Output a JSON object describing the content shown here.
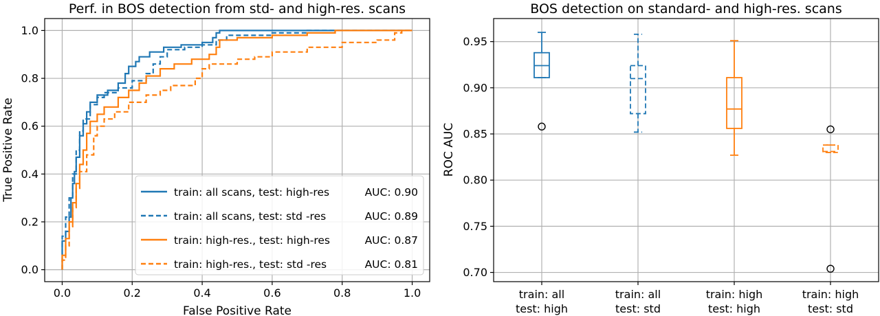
{
  "colors": {
    "blue": "#1f77b4",
    "orange": "#ff7f0e"
  },
  "chart_data": [
    {
      "type": "line",
      "title": "Perf. in BOS detection from std- and high-res. scans",
      "xlabel": "False Positive Rate",
      "ylabel": "True Positive Rate",
      "xlim": [
        -0.05,
        1.05
      ],
      "ylim": [
        -0.05,
        1.05
      ],
      "xticks": [
        0.0,
        0.2,
        0.4,
        0.6,
        0.8,
        1.0
      ],
      "yticks": [
        0.0,
        0.2,
        0.4,
        0.6,
        0.8,
        1.0
      ],
      "grid": true,
      "legend_position": "lower-right",
      "series": [
        {
          "name": "train: all scans, test: high-res",
          "auc_label": "AUC: 0.90",
          "color": "#1f77b4",
          "dash": "solid",
          "points": [
            [
              0,
              0
            ],
            [
              0,
              0.12
            ],
            [
              0.01,
              0.12
            ],
            [
              0.01,
              0.16
            ],
            [
              0.02,
              0.16
            ],
            [
              0.02,
              0.22
            ],
            [
              0.025,
              0.22
            ],
            [
              0.025,
              0.3
            ],
            [
              0.03,
              0.3
            ],
            [
              0.03,
              0.36
            ],
            [
              0.035,
              0.36
            ],
            [
              0.035,
              0.41
            ],
            [
              0.04,
              0.41
            ],
            [
              0.04,
              0.47
            ],
            [
              0.05,
              0.47
            ],
            [
              0.05,
              0.56
            ],
            [
              0.06,
              0.56
            ],
            [
              0.06,
              0.61
            ],
            [
              0.07,
              0.61
            ],
            [
              0.07,
              0.66
            ],
            [
              0.08,
              0.66
            ],
            [
              0.08,
              0.7
            ],
            [
              0.1,
              0.7
            ],
            [
              0.1,
              0.73
            ],
            [
              0.13,
              0.73
            ],
            [
              0.13,
              0.75
            ],
            [
              0.16,
              0.75
            ],
            [
              0.16,
              0.78
            ],
            [
              0.18,
              0.78
            ],
            [
              0.18,
              0.82
            ],
            [
              0.19,
              0.82
            ],
            [
              0.19,
              0.85
            ],
            [
              0.21,
              0.85
            ],
            [
              0.21,
              0.87
            ],
            [
              0.22,
              0.87
            ],
            [
              0.22,
              0.89
            ],
            [
              0.25,
              0.89
            ],
            [
              0.25,
              0.91
            ],
            [
              0.29,
              0.91
            ],
            [
              0.29,
              0.93
            ],
            [
              0.34,
              0.93
            ],
            [
              0.34,
              0.94
            ],
            [
              0.4,
              0.94
            ],
            [
              0.4,
              0.95
            ],
            [
              0.43,
              0.95
            ],
            [
              0.43,
              0.97
            ],
            [
              0.44,
              0.97
            ],
            [
              0.44,
              0.99
            ],
            [
              0.45,
              0.99
            ],
            [
              0.45,
              1.0
            ],
            [
              1.0,
              1.0
            ]
          ]
        },
        {
          "name": "train: all scans, test: std -res",
          "auc_label": "AUC: 0.89",
          "color": "#1f77b4",
          "dash": "dashed",
          "points": [
            [
              0,
              0
            ],
            [
              0,
              0.14
            ],
            [
              0.01,
              0.14
            ],
            [
              0.01,
              0.22
            ],
            [
              0.02,
              0.22
            ],
            [
              0.02,
              0.3
            ],
            [
              0.03,
              0.3
            ],
            [
              0.03,
              0.4
            ],
            [
              0.04,
              0.4
            ],
            [
              0.04,
              0.5
            ],
            [
              0.05,
              0.5
            ],
            [
              0.05,
              0.58
            ],
            [
              0.06,
              0.58
            ],
            [
              0.06,
              0.63
            ],
            [
              0.08,
              0.63
            ],
            [
              0.08,
              0.69
            ],
            [
              0.1,
              0.69
            ],
            [
              0.1,
              0.72
            ],
            [
              0.12,
              0.72
            ],
            [
              0.12,
              0.74
            ],
            [
              0.16,
              0.74
            ],
            [
              0.16,
              0.76
            ],
            [
              0.2,
              0.76
            ],
            [
              0.2,
              0.79
            ],
            [
              0.24,
              0.79
            ],
            [
              0.24,
              0.82
            ],
            [
              0.26,
              0.82
            ],
            [
              0.26,
              0.86
            ],
            [
              0.28,
              0.86
            ],
            [
              0.28,
              0.89
            ],
            [
              0.3,
              0.89
            ],
            [
              0.3,
              0.92
            ],
            [
              0.35,
              0.92
            ],
            [
              0.35,
              0.93
            ],
            [
              0.4,
              0.93
            ],
            [
              0.4,
              0.94
            ],
            [
              0.44,
              0.94
            ],
            [
              0.44,
              0.96
            ],
            [
              0.47,
              0.96
            ],
            [
              0.47,
              0.98
            ],
            [
              0.6,
              0.98
            ],
            [
              0.6,
              0.99
            ],
            [
              0.7,
              0.99
            ],
            [
              0.7,
              1.0
            ],
            [
              1.0,
              1.0
            ]
          ]
        },
        {
          "name": "train: high-res., test: high-res",
          "auc_label": "AUC: 0.87",
          "color": "#ff7f0e",
          "dash": "solid",
          "points": [
            [
              0,
              0
            ],
            [
              0,
              0.06
            ],
            [
              0.01,
              0.06
            ],
            [
              0.01,
              0.13
            ],
            [
              0.02,
              0.13
            ],
            [
              0.02,
              0.2
            ],
            [
              0.03,
              0.2
            ],
            [
              0.03,
              0.28
            ],
            [
              0.04,
              0.28
            ],
            [
              0.04,
              0.36
            ],
            [
              0.05,
              0.36
            ],
            [
              0.05,
              0.44
            ],
            [
              0.06,
              0.44
            ],
            [
              0.06,
              0.5
            ],
            [
              0.07,
              0.5
            ],
            [
              0.07,
              0.57
            ],
            [
              0.08,
              0.57
            ],
            [
              0.08,
              0.62
            ],
            [
              0.1,
              0.62
            ],
            [
              0.1,
              0.65
            ],
            [
              0.12,
              0.65
            ],
            [
              0.12,
              0.68
            ],
            [
              0.16,
              0.68
            ],
            [
              0.16,
              0.72
            ],
            [
              0.19,
              0.72
            ],
            [
              0.19,
              0.75
            ],
            [
              0.22,
              0.75
            ],
            [
              0.22,
              0.78
            ],
            [
              0.24,
              0.78
            ],
            [
              0.24,
              0.81
            ],
            [
              0.28,
              0.81
            ],
            [
              0.28,
              0.84
            ],
            [
              0.32,
              0.84
            ],
            [
              0.32,
              0.86
            ],
            [
              0.37,
              0.86
            ],
            [
              0.37,
              0.88
            ],
            [
              0.42,
              0.88
            ],
            [
              0.42,
              0.9
            ],
            [
              0.44,
              0.9
            ],
            [
              0.44,
              0.93
            ],
            [
              0.45,
              0.93
            ],
            [
              0.45,
              0.96
            ],
            [
              0.5,
              0.96
            ],
            [
              0.5,
              0.97
            ],
            [
              0.6,
              0.97
            ],
            [
              0.6,
              0.98
            ],
            [
              0.7,
              0.98
            ],
            [
              0.7,
              0.99
            ],
            [
              0.78,
              0.99
            ],
            [
              0.78,
              1.0
            ],
            [
              1.0,
              1.0
            ]
          ]
        },
        {
          "name": "train: high-res., test: std -res",
          "auc_label": "AUC: 0.81",
          "color": "#ff7f0e",
          "dash": "dashed",
          "points": [
            [
              0,
              0
            ],
            [
              0,
              0.04
            ],
            [
              0.01,
              0.04
            ],
            [
              0.01,
              0.1
            ],
            [
              0.02,
              0.1
            ],
            [
              0.02,
              0.18
            ],
            [
              0.03,
              0.18
            ],
            [
              0.03,
              0.26
            ],
            [
              0.04,
              0.26
            ],
            [
              0.04,
              0.34
            ],
            [
              0.05,
              0.34
            ],
            [
              0.05,
              0.41
            ],
            [
              0.07,
              0.41
            ],
            [
              0.07,
              0.48
            ],
            [
              0.09,
              0.48
            ],
            [
              0.09,
              0.56
            ],
            [
              0.1,
              0.56
            ],
            [
              0.1,
              0.6
            ],
            [
              0.12,
              0.6
            ],
            [
              0.12,
              0.63
            ],
            [
              0.15,
              0.63
            ],
            [
              0.15,
              0.66
            ],
            [
              0.19,
              0.66
            ],
            [
              0.19,
              0.7
            ],
            [
              0.24,
              0.7
            ],
            [
              0.24,
              0.73
            ],
            [
              0.28,
              0.73
            ],
            [
              0.28,
              0.75
            ],
            [
              0.31,
              0.75
            ],
            [
              0.31,
              0.77
            ],
            [
              0.38,
              0.77
            ],
            [
              0.38,
              0.8
            ],
            [
              0.4,
              0.8
            ],
            [
              0.4,
              0.84
            ],
            [
              0.42,
              0.84
            ],
            [
              0.42,
              0.86
            ],
            [
              0.5,
              0.86
            ],
            [
              0.5,
              0.88
            ],
            [
              0.55,
              0.88
            ],
            [
              0.55,
              0.89
            ],
            [
              0.6,
              0.89
            ],
            [
              0.6,
              0.91
            ],
            [
              0.7,
              0.91
            ],
            [
              0.7,
              0.93
            ],
            [
              0.8,
              0.93
            ],
            [
              0.8,
              0.95
            ],
            [
              0.9,
              0.95
            ],
            [
              0.9,
              0.96
            ],
            [
              0.95,
              0.96
            ],
            [
              0.95,
              0.99
            ],
            [
              0.97,
              0.99
            ],
            [
              0.97,
              1.0
            ],
            [
              1.0,
              1.0
            ]
          ]
        }
      ]
    },
    {
      "type": "box",
      "title": "BOS detection on standard- and high-res. scans",
      "xlabel": "",
      "ylabel": "ROC AUC",
      "ylim": [
        0.69,
        0.975
      ],
      "yticks": [
        0.7,
        0.75,
        0.8,
        0.85,
        0.9,
        0.95
      ],
      "grid": true,
      "categories": [
        [
          "train: all",
          "test: high"
        ],
        [
          "train: all",
          "test: std"
        ],
        [
          "train: high",
          "test: high"
        ],
        [
          "train: high",
          "test: std"
        ]
      ],
      "boxes": [
        {
          "whisker_low": 0.911,
          "q1": 0.911,
          "median": 0.924,
          "q3": 0.938,
          "whisker_high": 0.96,
          "outliers": [
            0.858
          ],
          "color": "#1f77b4",
          "dash": "solid"
        },
        {
          "whisker_low": 0.852,
          "q1": 0.872,
          "median": 0.91,
          "q3": 0.924,
          "whisker_high": 0.958,
          "outliers": [],
          "color": "#1f77b4",
          "dash": "dashed"
        },
        {
          "whisker_low": 0.827,
          "q1": 0.856,
          "median": 0.877,
          "q3": 0.911,
          "whisker_high": 0.951,
          "outliers": [],
          "color": "#ff7f0e",
          "dash": "solid"
        },
        {
          "whisker_low": 0.83,
          "q1": 0.83,
          "median": 0.831,
          "q3": 0.838,
          "whisker_high": 0.838,
          "outliers": [
            0.855,
            0.704
          ],
          "color": "#ff7f0e",
          "dash": "dashed"
        }
      ]
    }
  ]
}
